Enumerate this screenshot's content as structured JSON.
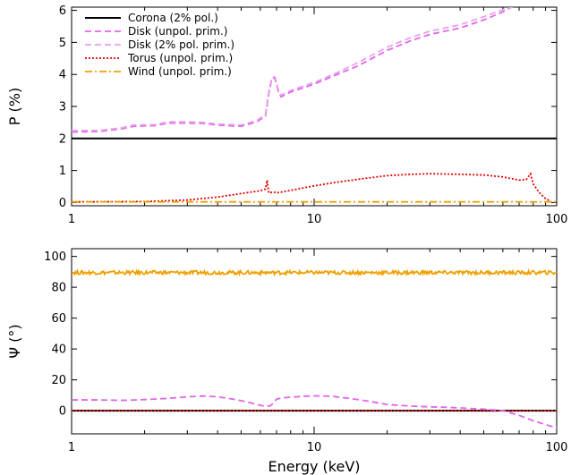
{
  "chart_data": [
    {
      "type": "line",
      "xlabel": "",
      "ylabel": "P (%)",
      "xscale": "log",
      "xlim": [
        1,
        100
      ],
      "ylim": [
        -0.1,
        6.1
      ],
      "xticks": [
        1,
        10,
        100
      ],
      "xtick_labels": [
        "1",
        "10",
        "100"
      ],
      "yticks": [
        0,
        1,
        2,
        3,
        4,
        5,
        6
      ],
      "ytick_labels": [
        "0",
        "1",
        "2",
        "3",
        "4",
        "5",
        "6"
      ],
      "legend": "top-left",
      "series": [
        {
          "name": "Corona (2% pol.)",
          "color": "#000000",
          "dash": "solid",
          "x": [
            1,
            100
          ],
          "y": [
            2,
            2
          ]
        },
        {
          "name": "Disk (unpol. prim.)",
          "color": "#e066e8",
          "dash": "dashed",
          "x": [
            1,
            1.3,
            1.6,
            1.8,
            2.2,
            2.5,
            3,
            3.5,
            4,
            5,
            5.8,
            6.3,
            6.5,
            6.7,
            6.9,
            7.1,
            7.3,
            8,
            10,
            12,
            15,
            20,
            25,
            30,
            40,
            50,
            60,
            65
          ],
          "y": [
            2.2,
            2.22,
            2.3,
            2.38,
            2.4,
            2.48,
            2.48,
            2.47,
            2.42,
            2.38,
            2.52,
            2.7,
            3.4,
            3.88,
            3.88,
            3.5,
            3.3,
            3.45,
            3.7,
            3.95,
            4.25,
            4.75,
            5.05,
            5.25,
            5.45,
            5.7,
            5.95,
            6.1
          ]
        },
        {
          "name": "Disk (2% pol. prim.)",
          "color": "#e8a0ee",
          "dash": "dashed",
          "x": [
            1,
            1.3,
            1.6,
            1.8,
            2.2,
            2.5,
            3,
            3.5,
            4,
            5,
            5.8,
            6.3,
            6.5,
            6.7,
            6.9,
            7.1,
            7.3,
            8,
            10,
            12,
            15,
            20,
            25,
            30,
            40,
            50,
            60,
            66
          ],
          "y": [
            2.25,
            2.25,
            2.33,
            2.42,
            2.43,
            2.52,
            2.52,
            2.5,
            2.45,
            2.42,
            2.56,
            2.75,
            3.45,
            3.92,
            3.92,
            3.55,
            3.35,
            3.5,
            3.75,
            4.0,
            4.35,
            4.85,
            5.15,
            5.35,
            5.55,
            5.8,
            6.02,
            6.1
          ]
        },
        {
          "name": "Torus (unpol. prim.)",
          "color": "#e00000",
          "dash": "dotted",
          "x": [
            1,
            2,
            3,
            4,
            5,
            6,
            6.3,
            6.4,
            6.5,
            6.8,
            7,
            8,
            10,
            12,
            15,
            20,
            25,
            30,
            40,
            50,
            60,
            70,
            75,
            78,
            80,
            85,
            90,
            95
          ],
          "y": [
            0.02,
            0.03,
            0.08,
            0.17,
            0.28,
            0.37,
            0.42,
            0.7,
            0.3,
            0.33,
            0.3,
            0.38,
            0.52,
            0.62,
            0.72,
            0.84,
            0.88,
            0.9,
            0.88,
            0.86,
            0.8,
            0.7,
            0.72,
            0.9,
            0.58,
            0.3,
            0.12,
            0.03
          ]
        },
        {
          "name": "Wind (unpol. prim.)",
          "color": "#f0a000",
          "dash": "dashdot",
          "x": [
            1,
            100
          ],
          "y": [
            0.02,
            0.02
          ]
        }
      ]
    },
    {
      "type": "line",
      "xlabel": "Energy (keV)",
      "ylabel": "Ψ (°)",
      "xscale": "log",
      "xlim": [
        1,
        100
      ],
      "ylim": [
        -15,
        105
      ],
      "xticks": [
        1,
        10,
        100
      ],
      "xtick_labels": [
        "1",
        "10",
        "100"
      ],
      "yticks": [
        0,
        20,
        40,
        60,
        80,
        100
      ],
      "ytick_labels": [
        "0",
        "20",
        "40",
        "60",
        "80",
        "100"
      ],
      "series": [
        {
          "name": "Corona (2% pol.)",
          "color": "#000000",
          "dash": "solid",
          "x": [
            1,
            100
          ],
          "y": [
            0,
            0
          ]
        },
        {
          "name": "Torus (unpol. prim.)",
          "color": "#e00000",
          "dash": "dotted",
          "x": [
            1,
            100
          ],
          "y": [
            0,
            0
          ]
        },
        {
          "name": "Disk (unpol. prim.)",
          "color": "#e066e8",
          "dash": "dashed",
          "x": [
            1,
            1.3,
            1.6,
            2,
            2.5,
            3,
            3.5,
            4,
            4.5,
            5,
            5.5,
            6,
            6.3,
            6.6,
            6.8,
            7,
            7.3,
            8,
            9,
            10,
            11,
            12,
            14,
            17,
            20,
            25,
            30,
            35,
            40,
            50,
            60,
            70,
            80,
            90,
            100
          ],
          "y": [
            7,
            7,
            6.7,
            7.2,
            8,
            9,
            9.5,
            9,
            7.8,
            6.5,
            5,
            3.5,
            2.8,
            3.2,
            5,
            7.5,
            8.2,
            8.8,
            9.3,
            9.6,
            9.5,
            9.2,
            8,
            6,
            4,
            3,
            2.5,
            2.2,
            1.8,
            1,
            0,
            -3,
            -6.5,
            -9,
            -11
          ]
        },
        {
          "name": "Wind (unpol. prim.)",
          "color": "#f0a000",
          "dash": "solid",
          "x": [
            1,
            100
          ],
          "y": [
            89.5,
            89.5
          ],
          "noise": true
        }
      ]
    }
  ]
}
